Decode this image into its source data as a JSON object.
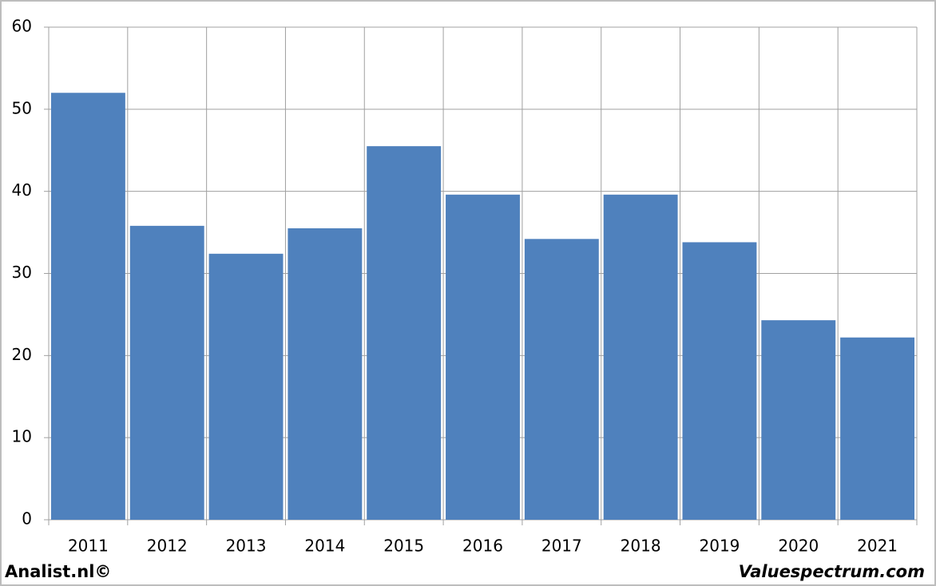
{
  "chart_data": {
    "type": "bar",
    "categories": [
      "2011",
      "2012",
      "2013",
      "2014",
      "2015",
      "2016",
      "2017",
      "2018",
      "2019",
      "2020",
      "2021"
    ],
    "values": [
      52,
      35.8,
      32.4,
      35.5,
      45.5,
      39.6,
      34.2,
      39.6,
      33.8,
      24.3,
      22.2
    ],
    "color": "#4f81bd",
    "ylim": [
      0,
      60
    ],
    "yticks": [
      0,
      10,
      20,
      30,
      40,
      50,
      60
    ],
    "grid": true,
    "credits": [
      "Analist.nl©",
      "Valuespectrum.com"
    ]
  }
}
